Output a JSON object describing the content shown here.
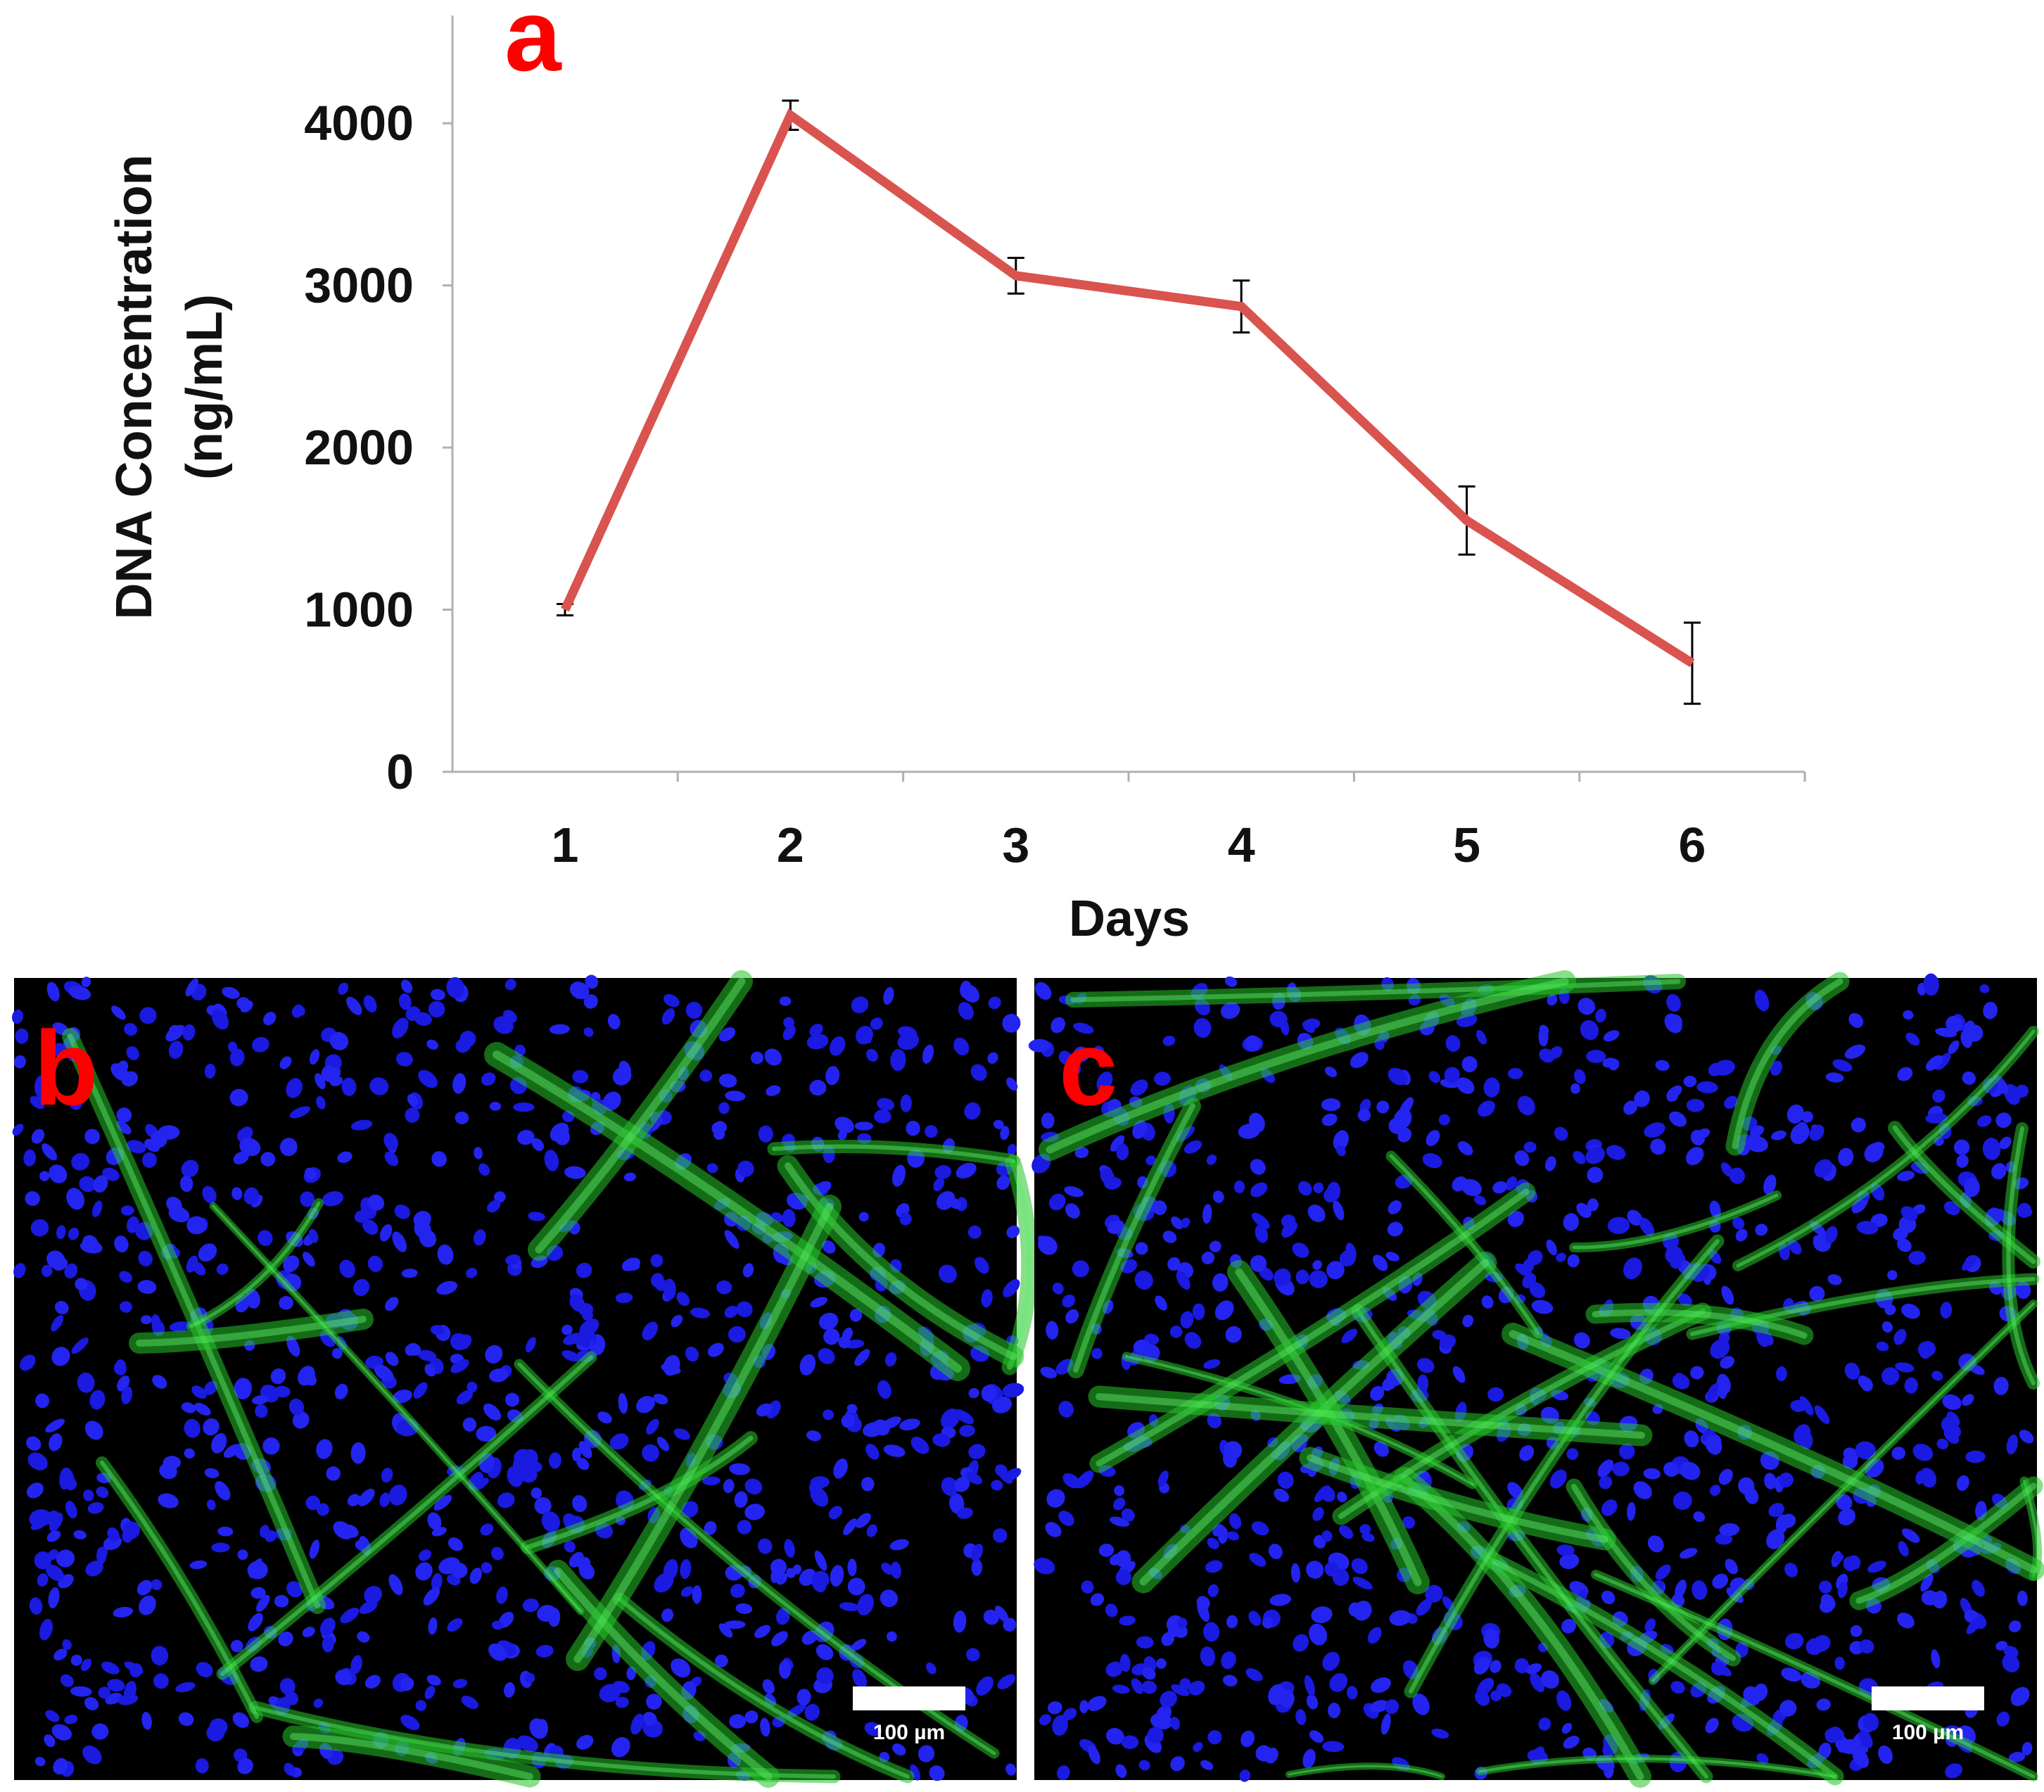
{
  "panels": {
    "a": {
      "label": "a"
    },
    "b": {
      "label": "b",
      "scale_bar": "100 µm"
    },
    "c": {
      "label": "c",
      "scale_bar": "100 µm"
    }
  },
  "colors": {
    "panel_label": "#ff0000",
    "line": "#d9534f",
    "axis": "#b0b0b0",
    "nuclei": "#1f1fe6",
    "fibers": "#2fd12f",
    "micrograph_bg": "#000000"
  },
  "chart_data": {
    "type": "line",
    "title": "",
    "xlabel": "Days",
    "ylabel_lines": [
      "DNA Concentration",
      "(ng/mL)"
    ],
    "categories": [
      "1",
      "2",
      "3",
      "4",
      "5",
      "6"
    ],
    "yticks": [
      "0",
      "1000",
      "2000",
      "3000",
      "4000"
    ],
    "ylim": [
      0,
      4500
    ],
    "grid": false,
    "series": [
      {
        "values": [
          1000,
          4050,
          3060,
          2870,
          1550,
          670
        ],
        "error": [
          35,
          90,
          110,
          160,
          210,
          250
        ]
      }
    ]
  }
}
